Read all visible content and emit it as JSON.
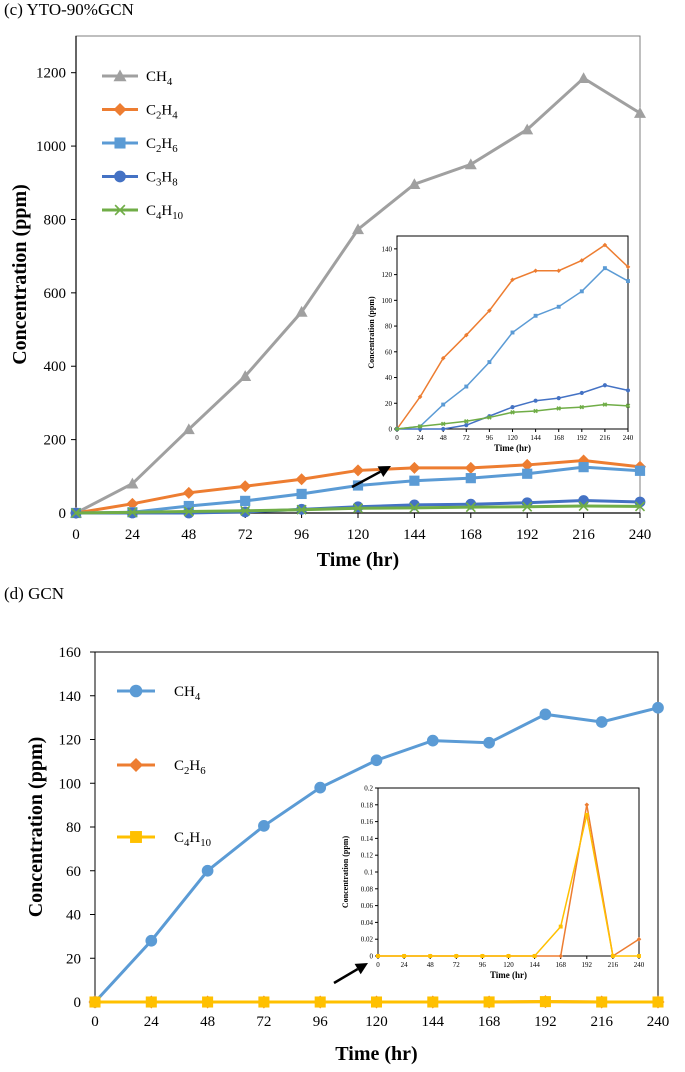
{
  "colors": {
    "ch4_c": "#a0a0a0",
    "c2h4_c": "#ed7d31",
    "c2h6_c": "#5b9bd5",
    "c3h8_c": "#4472c4",
    "c4h10_c": "#70ad47",
    "ch4_d": "#5b9bd5",
    "c2h6_d": "#ed7d31",
    "c4h10_d": "#ffc000",
    "axis": "#000000",
    "frame": "#7f7f7f"
  },
  "chart_data": [
    {
      "panel_label": "(c) YTO-90%GCN",
      "type": "line",
      "xlabel": "Time (hr)",
      "ylabel": "Concentration (ppm)",
      "x": [
        0,
        24,
        48,
        72,
        96,
        120,
        144,
        168,
        192,
        216,
        240
      ],
      "xlim": [
        0,
        240
      ],
      "ylim": [
        0,
        1300
      ],
      "xticks": [
        "0",
        "24",
        "48",
        "72",
        "96",
        "120",
        "144",
        "168",
        "192",
        "216",
        "240"
      ],
      "yticks": [
        "0",
        "200",
        "400",
        "600",
        "800",
        "1000",
        "1200"
      ],
      "legend": "top-left",
      "series": [
        {
          "name": "CH4",
          "base": "CH",
          "sub": "4",
          "marker": "triangle",
          "color_key": "ch4_c",
          "values": [
            0,
            80,
            228,
            373,
            548,
            773,
            896,
            950,
            1045,
            1185,
            1090
          ]
        },
        {
          "name": "C2H4",
          "base": "C",
          "sub1": "2",
          "mid": "H",
          "sub": "4",
          "marker": "diamond",
          "color_key": "c2h4_c",
          "values": [
            0,
            25,
            55,
            73,
            92,
            116,
            123,
            123,
            131,
            143,
            126
          ]
        },
        {
          "name": "C2H6",
          "base": "C",
          "sub1": "2",
          "mid": "H",
          "sub": "6",
          "marker": "square",
          "color_key": "c2h6_c",
          "values": [
            0,
            2,
            19,
            33,
            52,
            75,
            88,
            95,
            107,
            125,
            115
          ]
        },
        {
          "name": "C3H8",
          "base": "C",
          "sub1": "3",
          "mid": "H",
          "sub": "8",
          "marker": "circle",
          "color_key": "c3h8_c",
          "values": [
            0,
            0,
            0,
            3,
            10,
            17,
            22,
            24,
            28,
            34,
            30
          ]
        },
        {
          "name": "C4H10",
          "base": "C",
          "sub1": "4",
          "mid": "H",
          "sub": "10",
          "marker": "x",
          "color_key": "c4h10_c",
          "values": [
            0,
            2,
            4,
            6,
            9,
            13,
            14,
            16,
            17,
            19,
            18
          ]
        }
      ],
      "inset": {
        "xlabel": "Time (hr)",
        "ylabel": "Concentration (ppm)",
        "ylim": [
          0,
          150
        ],
        "yticks": [
          "0",
          "20",
          "40",
          "60",
          "80",
          "100",
          "120",
          "140"
        ],
        "xticks": [
          "0",
          "24",
          "48",
          "72",
          "96",
          "120",
          "144",
          "168",
          "192",
          "216",
          "240"
        ],
        "series_names": [
          "C2H4",
          "C2H6",
          "C3H8",
          "C4H10"
        ]
      }
    },
    {
      "panel_label": "(d) GCN",
      "type": "line",
      "xlabel": "Time (hr)",
      "ylabel": "Concentration (ppm)",
      "x": [
        0,
        24,
        48,
        72,
        96,
        120,
        144,
        168,
        192,
        216,
        240
      ],
      "xlim": [
        0,
        240
      ],
      "ylim": [
        0,
        160
      ],
      "xticks": [
        "0",
        "24",
        "48",
        "72",
        "96",
        "120",
        "144",
        "168",
        "192",
        "216",
        "240"
      ],
      "yticks": [
        "0",
        "20",
        "40",
        "60",
        "80",
        "100",
        "120",
        "140",
        "160"
      ],
      "legend": "left",
      "series": [
        {
          "name": "CH4",
          "base": "CH",
          "sub": "4",
          "marker": "circle",
          "color_key": "ch4_d",
          "values": [
            0,
            28,
            60,
            80.5,
            98,
            110.5,
            119.5,
            118.5,
            131.5,
            128,
            134.5
          ]
        },
        {
          "name": "C2H6",
          "base": "C",
          "sub1": "2",
          "mid": "H",
          "sub": "6",
          "marker": "diamond",
          "color_key": "c2h6_d",
          "values": [
            0,
            0,
            0,
            0,
            0,
            0,
            0,
            0,
            0.18,
            0,
            0.02
          ]
        },
        {
          "name": "C4H10",
          "base": "C",
          "sub1": "4",
          "mid": "H",
          "sub": "10",
          "marker": "square",
          "color_key": "c4h10_d",
          "values": [
            0,
            0,
            0,
            0,
            0,
            0,
            0,
            0.035,
            0.168,
            0,
            0
          ]
        }
      ],
      "inset": {
        "xlabel": "Time (hr)",
        "ylabel": "Concentration (ppm)",
        "ylim": [
          0,
          0.2
        ],
        "yticks": [
          "0",
          "0.02",
          "0.04",
          "0.06",
          "0.08",
          "0.1",
          "0.12",
          "0.14",
          "0.16",
          "0.18",
          "0.2"
        ],
        "xticks": [
          "0",
          "24",
          "48",
          "72",
          "96",
          "120",
          "144",
          "168",
          "192",
          "216",
          "240"
        ],
        "series_names": [
          "C2H6",
          "C4H10"
        ]
      }
    }
  ]
}
